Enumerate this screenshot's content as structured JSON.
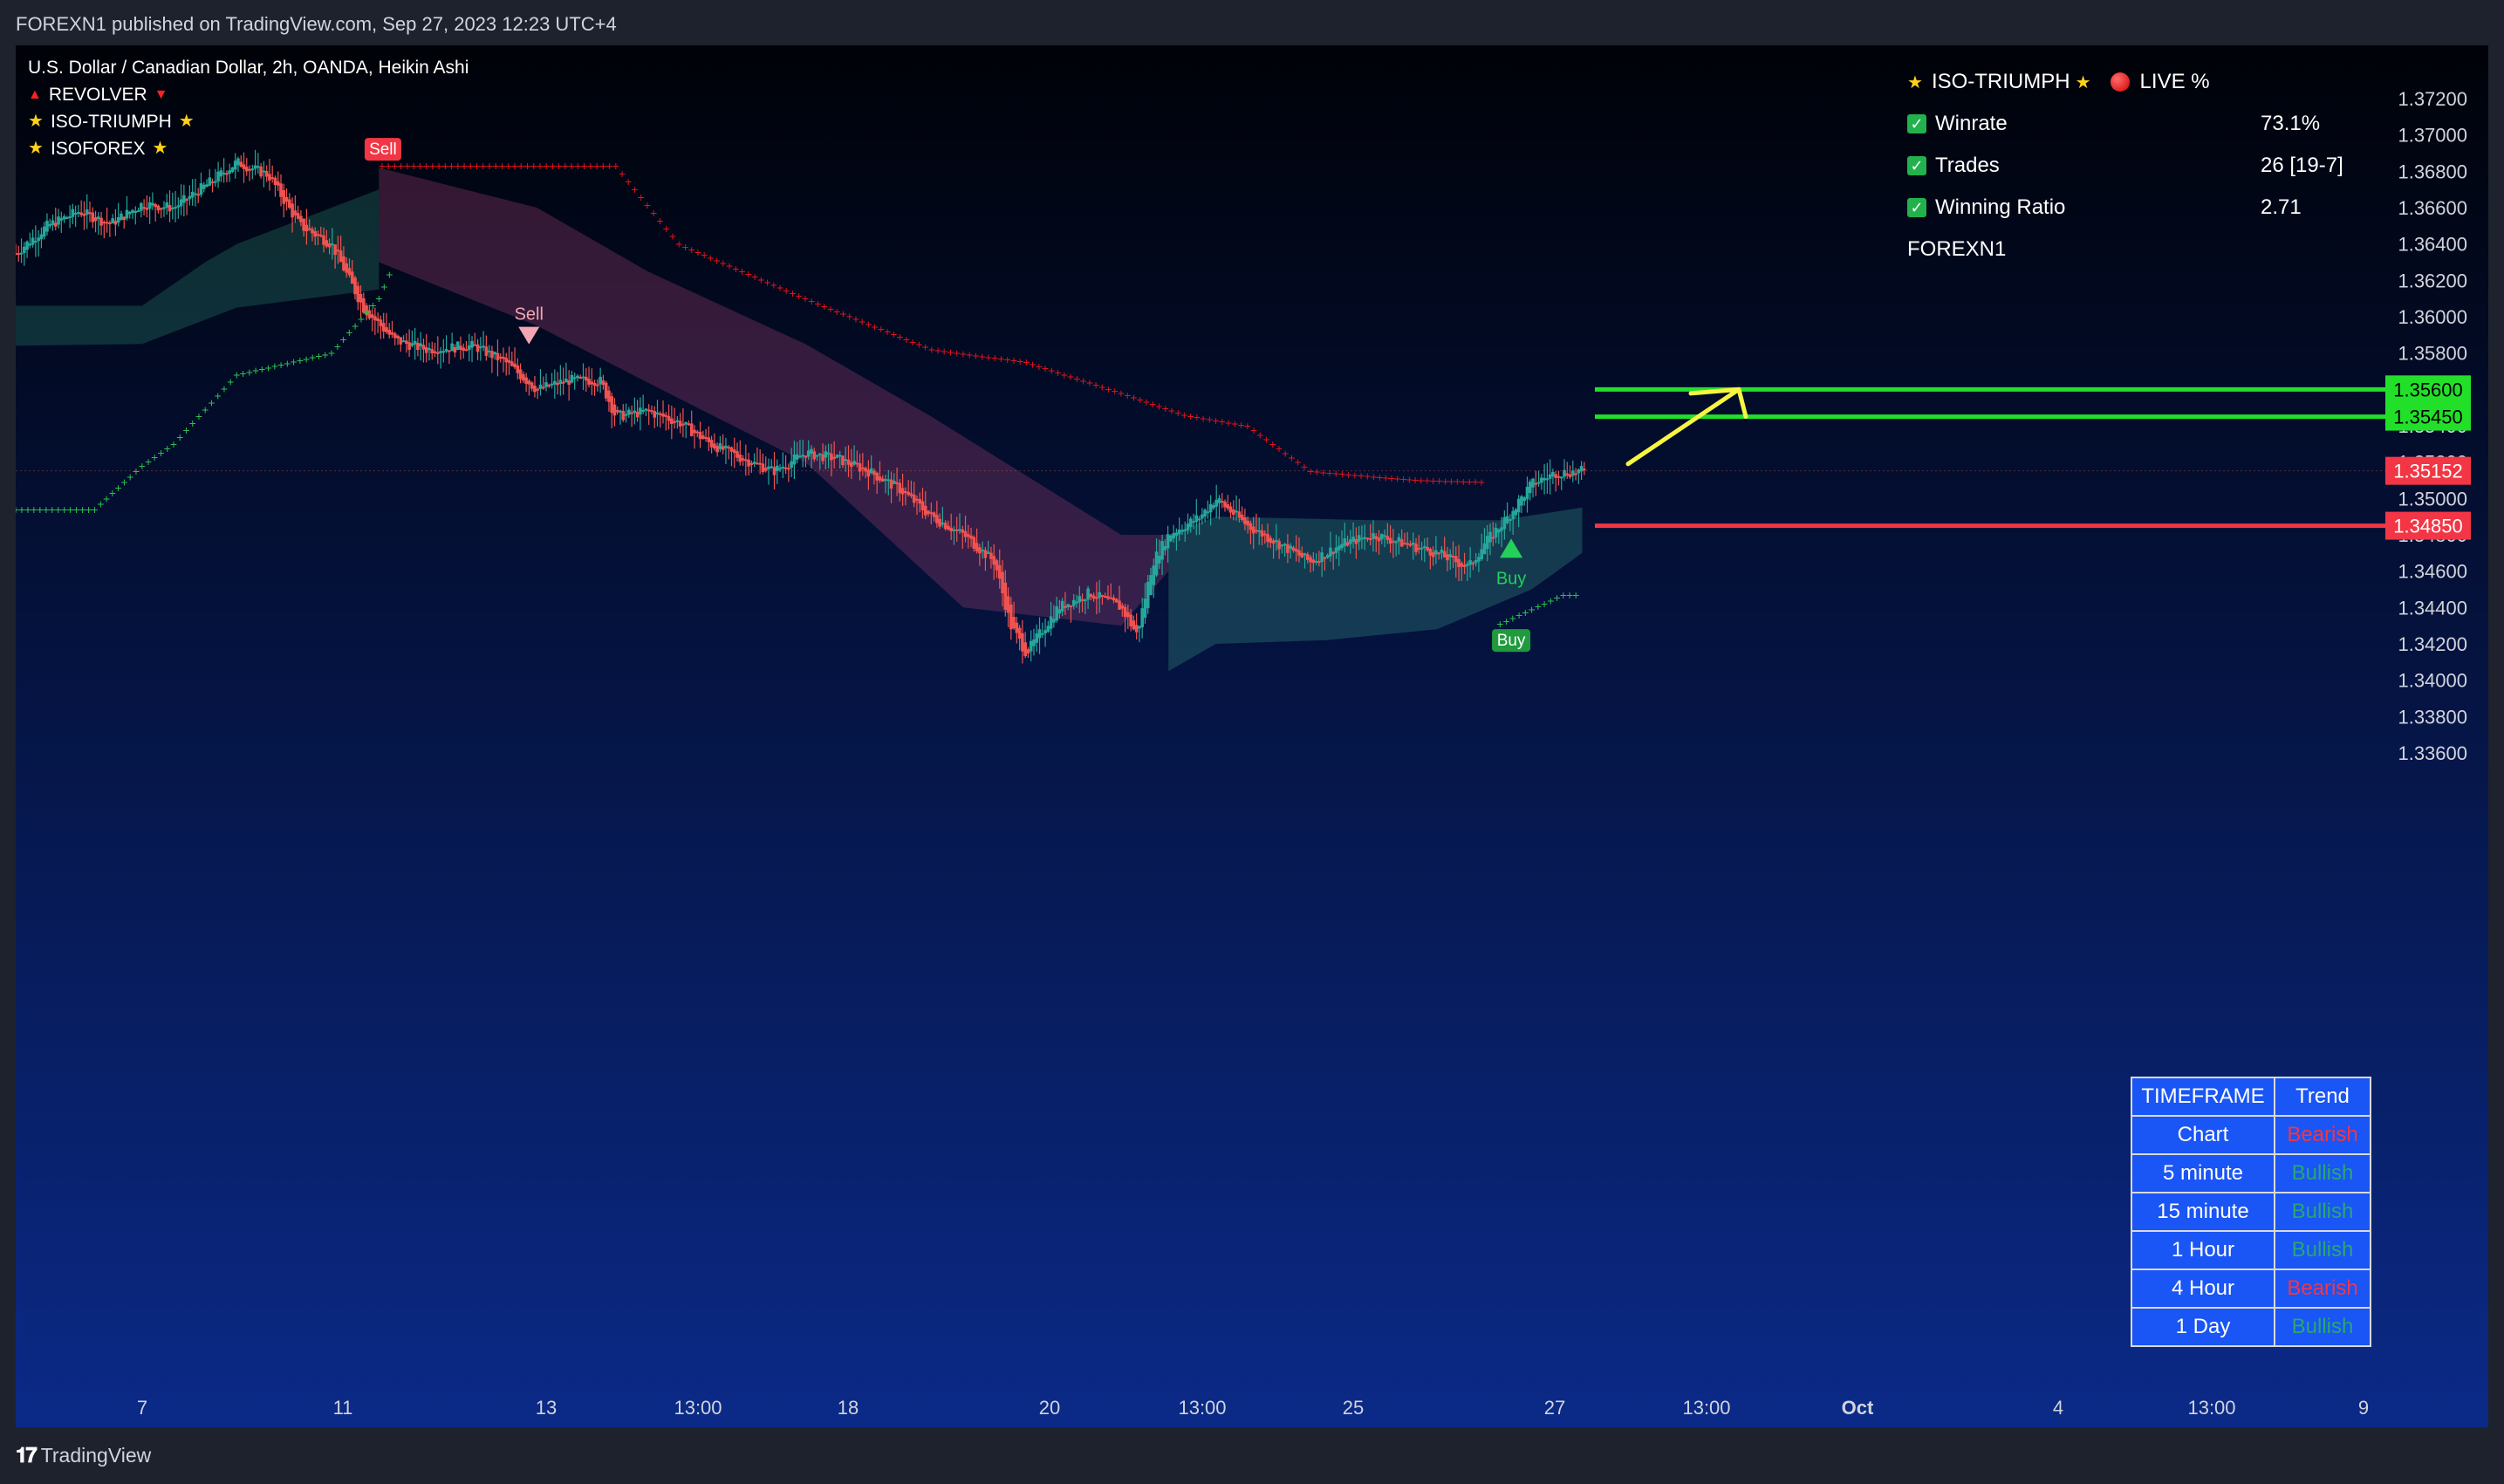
{
  "header": {
    "published_by": "FOREXN1 published on TradingView.com, Sep 27, 2023 12:23 UTC+4"
  },
  "legend": {
    "symbol": "U.S. Dollar / Canadian Dollar, 2h, OANDA, Heikin Ashi",
    "ind1": "REVOLVER",
    "ind2": "ISO-TRIUMPH",
    "ind3": "ISOFOREX"
  },
  "stats": {
    "title": "ISO-TRIUMPH",
    "live": "LIVE %",
    "winrate_label": "Winrate",
    "winrate": "73.1%",
    "trades_label": "Trades",
    "trades": "26 [19-7]",
    "ratio_label": "Winning Ratio",
    "ratio": "2.71",
    "author": "FOREXN1"
  },
  "signals": {
    "sell": "Sell",
    "buy": "Buy"
  },
  "price_axis": [
    "1.37200",
    "1.37000",
    "1.36800",
    "1.36600",
    "1.36400",
    "1.36200",
    "1.36000",
    "1.35800",
    "1.35400",
    "1.35200",
    "1.35000",
    "1.34800",
    "1.34600",
    "1.34400",
    "1.34200",
    "1.34000",
    "1.33800",
    "1.33600"
  ],
  "price_tags": {
    "tp2": "1.35600",
    "tp1": "1.35450",
    "current": "1.35152",
    "sl": "1.34850"
  },
  "time_axis": [
    "7",
    "11",
    "13",
    "13:00",
    "18",
    "20",
    "13:00",
    "25",
    "27",
    "13:00",
    "Oct",
    "4",
    "13:00",
    "9"
  ],
  "trend_table": {
    "header_tf": "TIMEFRAME",
    "header_trend": "Trend",
    "rows": [
      {
        "tf": "Chart",
        "trend": "Bearish"
      },
      {
        "tf": "5 minute",
        "trend": "Bullish"
      },
      {
        "tf": "15 minute",
        "trend": "Bullish"
      },
      {
        "tf": "1 Hour",
        "trend": "Bullish"
      },
      {
        "tf": "4 Hour",
        "trend": "Bearish"
      },
      {
        "tf": "1 Day",
        "trend": "Bullish"
      }
    ]
  },
  "footer": {
    "brand": "TradingView"
  },
  "colors": {
    "bull": "#26a69a",
    "bear": "#ef5350",
    "tp": "#22e02a",
    "sl": "#f23645",
    "arrow": "#f5f542"
  },
  "chart_data": {
    "type": "candlestick",
    "title": "U.S. Dollar / Canadian Dollar, 2h, OANDA, Heikin Ashi",
    "ylim": [
      1.335,
      1.373
    ],
    "series": [
      {
        "name": "REVOLVER (price swing path)",
        "values": [
          [
            0,
            1.3635
          ],
          [
            20,
            1.365
          ],
          [
            40,
            1.3658
          ],
          [
            60,
            1.3651
          ],
          [
            80,
            1.3662
          ],
          [
            100,
            1.366
          ],
          [
            120,
            1.3672
          ],
          [
            140,
            1.3685
          ],
          [
            160,
            1.3678
          ],
          [
            180,
            1.365
          ],
          [
            200,
            1.364
          ],
          [
            220,
            1.3605
          ],
          [
            240,
            1.3587
          ],
          [
            260,
            1.3582
          ],
          [
            290,
            1.3584
          ],
          [
            310,
            1.3575
          ],
          [
            330,
            1.356
          ],
          [
            350,
            1.3565
          ],
          [
            370,
            1.3565
          ],
          [
            380,
            1.3545
          ],
          [
            400,
            1.3548
          ],
          [
            420,
            1.3542
          ],
          [
            440,
            1.353
          ],
          [
            460,
            1.3522
          ],
          [
            480,
            1.3515
          ],
          [
            500,
            1.3525
          ],
          [
            520,
            1.3522
          ],
          [
            540,
            1.3515
          ],
          [
            560,
            1.3505
          ],
          [
            580,
            1.349
          ],
          [
            600,
            1.348
          ],
          [
            620,
            1.3465
          ],
          [
            630,
            1.343
          ],
          [
            640,
            1.3415
          ],
          [
            660,
            1.344
          ],
          [
            680,
            1.3448
          ],
          [
            700,
            1.344
          ],
          [
            710,
            1.3425
          ],
          [
            720,
            1.3465
          ],
          [
            730,
            1.348
          ],
          [
            750,
            1.349
          ],
          [
            760,
            1.35
          ],
          [
            780,
            1.3485
          ],
          [
            800,
            1.3475
          ],
          [
            820,
            1.3465
          ],
          [
            840,
            1.3475
          ],
          [
            860,
            1.348
          ],
          [
            880,
            1.3475
          ],
          [
            900,
            1.347
          ],
          [
            920,
            1.3462
          ],
          [
            930,
            1.3475
          ],
          [
            945,
            1.349
          ],
          [
            960,
            1.3508
          ],
          [
            975,
            1.3514
          ],
          [
            992,
            1.3515
          ]
        ]
      },
      {
        "name": "Sell",
        "values": [
          [
            232,
            1.3683
          ],
          [
            325,
            1.358
          ]
        ]
      },
      {
        "name": "Buy",
        "values": [
          [
            947,
            1.3476
          ],
          [
            947,
            1.3431
          ]
        ]
      }
    ],
    "levels": {
      "tp2": 1.356,
      "tp1": 1.3545,
      "current": 1.35152,
      "sl": 1.3485
    }
  }
}
